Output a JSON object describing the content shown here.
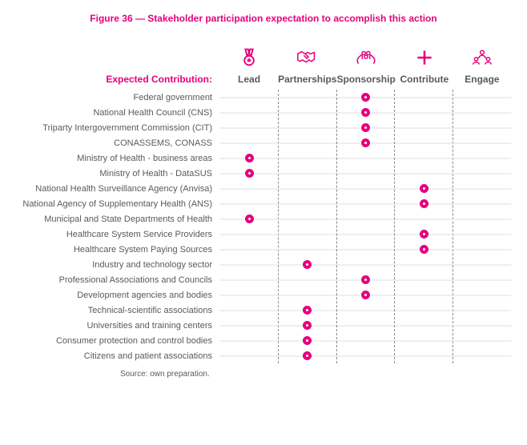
{
  "title": "Figure  36 — Stakeholder participation expectation to accomplish this action",
  "expected_label": "Expected Contribution:",
  "source": "Source: own preparation.",
  "colors": {
    "accent": "#e6007e",
    "text": "#5a5a5a",
    "vline": "#8a8a8a",
    "vline_light": "#d2d2d2",
    "hline": "#bfbfbf"
  },
  "fontsize": {
    "title": 12,
    "header": 12,
    "row": 11,
    "source": 10
  },
  "columns": [
    {
      "key": "lead",
      "label": "Lead",
      "icon": "medal-icon"
    },
    {
      "key": "partnerships",
      "label": "Partnerships",
      "icon": "handshake-icon"
    },
    {
      "key": "sponsorship",
      "label": "Sponsorship",
      "icon": "hands-icon"
    },
    {
      "key": "contribute",
      "label": "Contribute",
      "icon": "plus-icon"
    },
    {
      "key": "engage",
      "label": "Engage",
      "icon": "people-icon"
    }
  ],
  "vline_styles": [
    "dark",
    "dark",
    "dark",
    "dark",
    "light"
  ],
  "rows": [
    {
      "label": "Federal government",
      "mark": "sponsorship"
    },
    {
      "label": "National Health Council (CNS)",
      "mark": "sponsorship"
    },
    {
      "label": "Triparty Intergovernment Commission (CIT)",
      "mark": "sponsorship"
    },
    {
      "label": "CONASSEMS, CONASS",
      "mark": "sponsorship"
    },
    {
      "label": "Ministry of Health - business areas",
      "mark": "lead"
    },
    {
      "label": "Ministry of Health - DataSUS",
      "mark": "lead"
    },
    {
      "label": "National Health Surveillance Agency (Anvisa)",
      "mark": "contribute"
    },
    {
      "label": "National Agency of Supplementary Health (ANS)",
      "mark": "contribute"
    },
    {
      "label": "Municipal and State Departments of Health",
      "mark": "lead"
    },
    {
      "label": "Healthcare System Service Providers",
      "mark": "contribute"
    },
    {
      "label": "Healthcare System Paying Sources",
      "mark": "contribute"
    },
    {
      "label": "Industry and technology sector",
      "mark": "partnerships"
    },
    {
      "label": "Professional Associations and Councils",
      "mark": "sponsorship"
    },
    {
      "label": "Development agencies and bodies",
      "mark": "sponsorship"
    },
    {
      "label": "Technical-scientific associations",
      "mark": "partnerships"
    },
    {
      "label": "Universities and training centers",
      "mark": "partnerships"
    },
    {
      "label": "Consumer protection and control bodies",
      "mark": "partnerships"
    },
    {
      "label": "Citizens and patient associations",
      "mark": "partnerships"
    }
  ],
  "icons": {
    "medal-icon": "<svg width='28' height='28' viewBox='0 0 24 24' fill='none' stroke='#e6007e' stroke-width='1.6'><path d='M8 3h3l1 5-2.5 1L8 3z'/><path d='M13 3h3l-1.5 6L12 8l1-5z'/><circle cx='12' cy='15' r='5'/><path d='M12 12l1 2h2l-1.6 1.3.6 2-2-1.2-2 1.2.6-2L9 14h2z' fill='#e6007e' stroke='none'/></svg>",
    "handshake-icon": "<svg width='30' height='28' viewBox='0 0 32 24' fill='none' stroke='#e6007e' stroke-width='1.6'><path d='M3 7l5-3 5 3 3-2 4 2 5-2v9l-4 3-3-2-4 3-5-3-3 2-3-2z'/><path d='M13 7l4 4-2 2-4-4'/></svg>",
    "hands-icon": "<svg width='30' height='28' viewBox='0 0 32 24' fill='none' stroke='#e6007e' stroke-width='1.6'><path d='M6 20c-2-2-2-6 0-8l3-3c1-1 2 0 2 1v4'/><path d='M26 20c2-2 2-6 0-8l-3-3c-1-1-2 0-2 1v4'/><circle cx='13' cy='6' r='2.2'/><circle cx='19' cy='6' r='2.2'/><circle cx='16' cy='11' r='2.2'/></svg>",
    "plus-icon": "<svg width='26' height='28' viewBox='0 0 24 24' fill='none' stroke='#e6007e' stroke-width='2.4'><path d='M12 4v16M4 12h16'/></svg>",
    "people-icon": "<svg width='30' height='28' viewBox='0 0 32 24' fill='none' stroke='#e6007e' stroke-width='1.6'><circle cx='16' cy='5' r='2.5'/><path d='M12 12c0-2 2-3 4-3s4 1 4 3'/><circle cx='8' cy='14' r='2.3'/><path d='M4 21c0-2 2-3 4-3s4 1 4 3'/><circle cx='24' cy='14' r='2.3'/><path d='M20 21c0-2 2-3 4-3s4 1 4 3'/><path d='M13 11l-3 2M19 11l3 2'/></svg>"
  }
}
